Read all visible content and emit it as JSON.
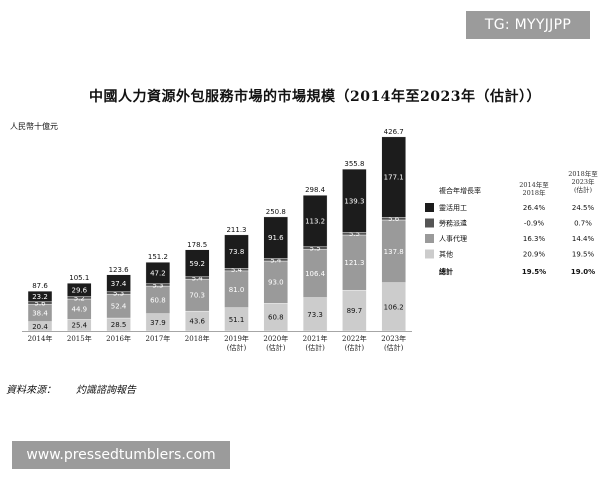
{
  "badges": {
    "top": "TG: MYYJJPP",
    "bottom": "www.pressedtumblers.com"
  },
  "colors": {
    "flexible": "#1c1c1c",
    "dispatch": "#555555",
    "hr_agency": "#9a9a9a",
    "other": "#cccccc"
  },
  "source": "資料來源：　　灼識諮詢報告",
  "legend": {
    "header_label": "複合年增長率",
    "col1_header": [
      "2014年至",
      "2018年"
    ],
    "col2_header": [
      "2018年至",
      "2023年",
      "(估計)"
    ],
    "rows": [
      {
        "name": "靈活用工",
        "cagr1": "26.4%",
        "cagr2": "24.5%",
        "color": "#1c1c1c"
      },
      {
        "name": "勞務派遣",
        "cagr1": "-0.9%",
        "cagr2": "0.7%",
        "color": "#555555"
      },
      {
        "name": "人事代理",
        "cagr1": "16.3%",
        "cagr2": "14.4%",
        "color": "#9a9a9a"
      },
      {
        "name": "其他",
        "cagr1": "20.9%",
        "cagr2": "19.5%",
        "color": "#cccccc"
      }
    ],
    "total": {
      "name": "總計",
      "cagr1": "19.5%",
      "cagr2": "19.0%"
    }
  },
  "chart_data": {
    "type": "bar",
    "stacked": true,
    "title": "中國人力資源外包服務市場的市場規模（2014年至2023年（估計））",
    "ylabel": "人民幣十億元",
    "categories": [
      [
        "2014年"
      ],
      [
        "2015年"
      ],
      [
        "2016年"
      ],
      [
        "2017年"
      ],
      [
        "2018年"
      ],
      [
        "2019年",
        "(估計)"
      ],
      [
        "2020年",
        "(估計)"
      ],
      [
        "2021年",
        "(估計)"
      ],
      [
        "2022年",
        "(估計)"
      ],
      [
        "2023年",
        "(估計)"
      ]
    ],
    "series": [
      {
        "name": "其他",
        "values": [
          20.4,
          25.4,
          28.5,
          37.9,
          43.6,
          51.1,
          60.8,
          73.3,
          89.7,
          106.2
        ]
      },
      {
        "name": "人事代理",
        "values": [
          38.4,
          44.9,
          52.4,
          60.8,
          70.3,
          81.0,
          93.0,
          106.4,
          121.3,
          137.8
        ]
      },
      {
        "name": "勞務派遣",
        "values": [
          5.6,
          5.2,
          5.3,
          5.3,
          5.4,
          5.4,
          5.4,
          5.5,
          5.5,
          5.6
        ]
      },
      {
        "name": "靈活用工",
        "values": [
          23.2,
          29.6,
          37.4,
          47.2,
          59.2,
          73.8,
          91.6,
          113.2,
          139.3,
          177.1
        ]
      }
    ],
    "totals": [
      87.6,
      105.1,
      123.6,
      151.2,
      178.5,
      211.3,
      250.8,
      298.4,
      355.8,
      426.7
    ],
    "legend_position": "right",
    "grid": false
  }
}
